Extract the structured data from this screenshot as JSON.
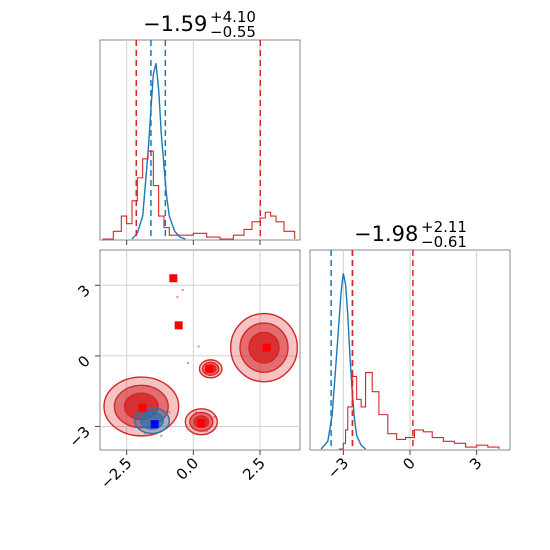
{
  "chart_data": [
    {
      "panel": "marginal-x1",
      "type": "area",
      "title": {
        "median": "−1.59",
        "plus": "+4.10",
        "minus": "−0.55"
      },
      "xlim": [
        -3.5,
        4.0
      ],
      "series": [
        {
          "color": "#1f77b4",
          "x": [
            -2.3,
            -2.1,
            -1.9,
            -1.7,
            -1.5,
            -1.4,
            -1.3,
            -1.2,
            -1.1,
            -1.0,
            -0.9,
            -0.7,
            -0.5,
            -0.3
          ],
          "values": [
            0.0,
            0.03,
            0.12,
            0.45,
            0.86,
            0.92,
            0.78,
            0.55,
            0.38,
            0.22,
            0.12,
            0.04,
            0.01,
            0.0
          ],
          "quantiles": [
            -2.14,
            -1.59,
            -1.05
          ]
        },
        {
          "color": "#d62728",
          "x": [
            -3.4,
            -3.0,
            -2.7,
            -2.5,
            -2.3,
            -2.1,
            -1.9,
            -1.7,
            -1.5,
            -1.3,
            -1.1,
            -0.9,
            -0.5,
            0.0,
            0.5,
            1.0,
            1.5,
            1.9,
            2.2,
            2.5,
            2.7,
            2.9,
            3.1,
            3.4,
            3.8
          ],
          "values": [
            0.0,
            0.04,
            0.12,
            0.08,
            0.2,
            0.32,
            0.42,
            0.46,
            0.28,
            0.12,
            0.06,
            0.02,
            0.02,
            0.03,
            0.01,
            0.0,
            0.02,
            0.05,
            0.09,
            0.11,
            0.14,
            0.12,
            0.09,
            0.04,
            0.0
          ],
          "quantiles": [
            -2.14,
            2.51
          ]
        }
      ],
      "xticks": [
        -2.5,
        0.0,
        2.5
      ]
    },
    {
      "panel": "marginal-x2",
      "type": "area",
      "title": {
        "median": "−1.98",
        "plus": "+2.11",
        "minus": "−0.61"
      },
      "xlim": [
        -4.5,
        4.5
      ],
      "series": [
        {
          "color": "#1f77b4",
          "x": [
            -4.0,
            -3.7,
            -3.5,
            -3.3,
            -3.1,
            -3.0,
            -2.9,
            -2.8,
            -2.7,
            -2.6,
            -2.5,
            -2.4,
            -2.2,
            -2.0
          ],
          "values": [
            0.0,
            0.04,
            0.18,
            0.5,
            0.82,
            0.92,
            0.86,
            0.7,
            0.48,
            0.3,
            0.16,
            0.07,
            0.02,
            0.0
          ],
          "quantiles": [
            -3.55,
            -2.59
          ]
        },
        {
          "color": "#d62728",
          "x": [
            -3.2,
            -3.0,
            -2.9,
            -2.8,
            -2.6,
            -2.4,
            -2.2,
            -2.0,
            -1.7,
            -1.4,
            -1.0,
            -0.6,
            -0.2,
            0.2,
            0.6,
            1.0,
            1.5,
            2.0,
            2.5,
            3.0,
            3.5,
            4.0
          ],
          "values": [
            0.0,
            0.03,
            0.1,
            0.22,
            0.38,
            0.26,
            0.22,
            0.4,
            0.3,
            0.18,
            0.08,
            0.05,
            0.06,
            0.1,
            0.09,
            0.06,
            0.04,
            0.03,
            0.01,
            0.02,
            0.01,
            0.0
          ],
          "quantiles": [
            -2.59,
            0.13
          ]
        }
      ],
      "xticks": [
        -3,
        0,
        3
      ]
    },
    {
      "panel": "joint",
      "type": "scatter",
      "xlim": [
        -3.5,
        4.0
      ],
      "ylim": [
        -4.0,
        4.5
      ],
      "xticks": [
        -2.5,
        0.0,
        2.5
      ],
      "yticks": [
        -3,
        0,
        3
      ],
      "blue_points": [
        {
          "x": -1.45,
          "y": -2.9
        }
      ],
      "red_points": [
        {
          "x": -0.75,
          "y": 3.3
        },
        {
          "x": -0.55,
          "y": 1.3
        },
        {
          "x": 0.6,
          "y": -0.55
        },
        {
          "x": 2.75,
          "y": 0.35
        },
        {
          "x": -1.9,
          "y": -2.2
        },
        {
          "x": 0.3,
          "y": -2.85
        }
      ],
      "contours": [
        {
          "color": "#d62728",
          "cx": -1.95,
          "cy": -2.15,
          "rx": 1.4,
          "ry": 1.25
        },
        {
          "color": "#d62728",
          "cx": 2.65,
          "cy": 0.35,
          "rx": 1.25,
          "ry": 1.45
        },
        {
          "color": "#d62728",
          "cx": 0.65,
          "cy": -0.55,
          "rx": 0.42,
          "ry": 0.38
        },
        {
          "color": "#d62728",
          "cx": 0.3,
          "cy": -2.8,
          "rx": 0.6,
          "ry": 0.55
        },
        {
          "color": "#1f77b4",
          "cx": -1.55,
          "cy": -2.75,
          "rx": 0.65,
          "ry": 0.55
        }
      ]
    }
  ]
}
